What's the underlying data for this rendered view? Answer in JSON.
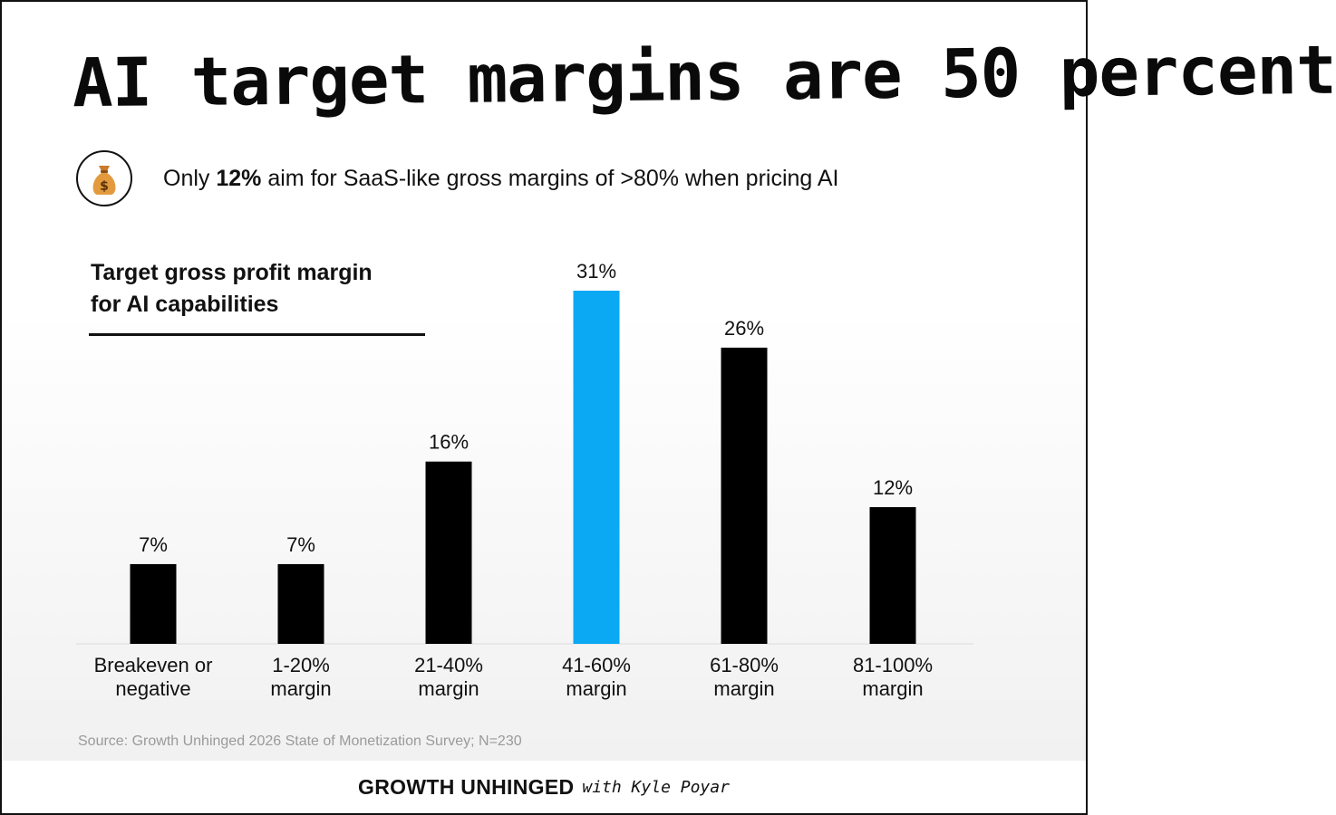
{
  "title": "AI target margins are 50 percent",
  "subtitle": {
    "prefix": "Only ",
    "highlight": "12%",
    "suffix": " aim for SaaS-like gross margins of >80% when pricing AI",
    "icon": "money-bag-icon"
  },
  "chart_data": {
    "type": "bar",
    "title_lines": [
      "Target gross profit margin",
      "for AI capabilities"
    ],
    "categories": [
      [
        "Breakeven or",
        "negative"
      ],
      [
        "1-20%",
        "margin"
      ],
      [
        "21-40%",
        "margin"
      ],
      [
        "41-60%",
        "margin"
      ],
      [
        "61-80%",
        "margin"
      ],
      [
        "81-100%",
        "margin"
      ]
    ],
    "values": [
      7,
      7,
      16,
      31,
      26,
      12
    ],
    "value_labels": [
      "7%",
      "7%",
      "16%",
      "31%",
      "26%",
      "12%"
    ],
    "highlight_index": 3,
    "ylim": [
      0,
      31
    ],
    "grid": false,
    "legend": "none",
    "colors": {
      "default": "#000000",
      "highlight": "#0ba9f4"
    }
  },
  "source": "Source: Growth Unhinged 2026 State of Monetization Survey; N=230",
  "footer": {
    "brand": "GROWTH UNHINGED",
    "byline": "with Kyle Poyar"
  }
}
